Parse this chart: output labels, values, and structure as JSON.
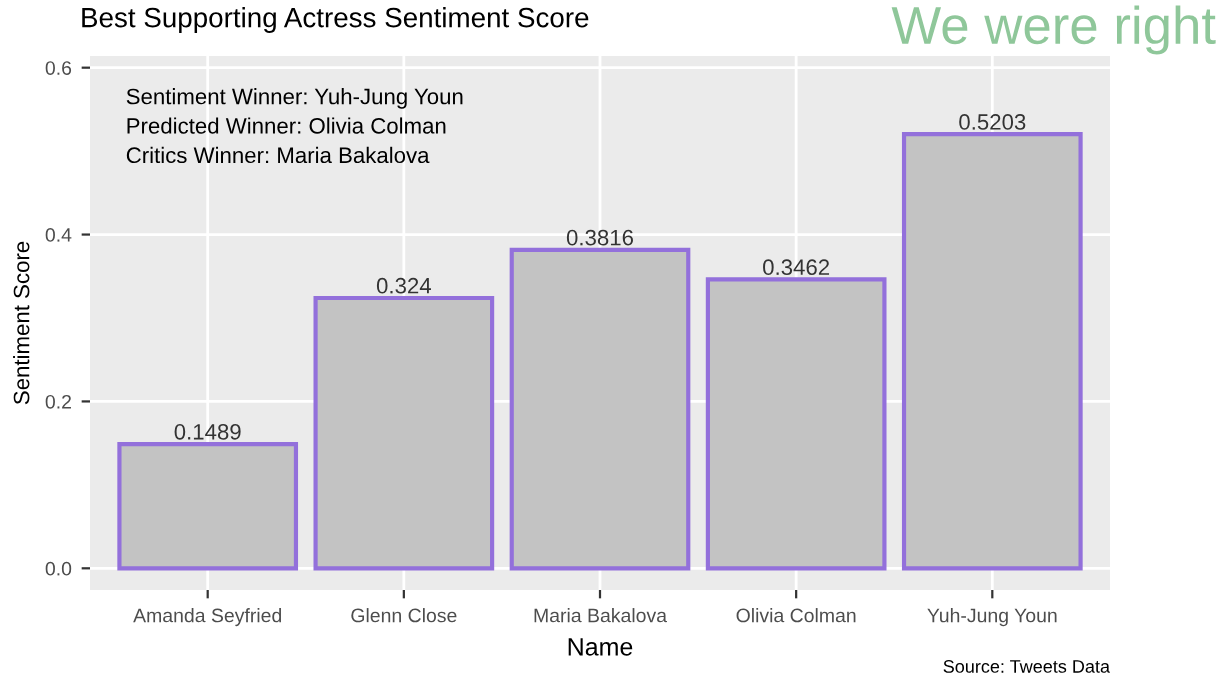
{
  "chart_data": {
    "type": "bar",
    "title": "Best Supporting Actress Sentiment Score",
    "xlabel": "Name",
    "ylabel": "Sentiment Score",
    "categories": [
      "Amanda Seyfried",
      "Glenn Close",
      "Maria Bakalova",
      "Olivia Colman",
      "Yuh-Jung Youn"
    ],
    "values": [
      0.1489,
      0.324,
      0.3816,
      0.3462,
      0.5203
    ],
    "color": "#c3c3c3",
    "ylim": [
      -0.026,
      0.614
    ],
    "yticks": [
      {
        "value": 0,
        "label": "0.0"
      },
      {
        "value": 0.2,
        "label": "0.2"
      },
      {
        "value": 0.4,
        "label": "0.4"
      },
      {
        "value": 0.6,
        "label": "0.6"
      }
    ],
    "grid": true,
    "data_labels": true,
    "annotations": [
      "Sentiment Winner: Yuh-Jung Youn",
      "Predicted Winner: Olivia Colman",
      "Critics Winner: Maria Bakalova",
      "Source: Tweets Data",
      "We were right"
    ]
  }
}
